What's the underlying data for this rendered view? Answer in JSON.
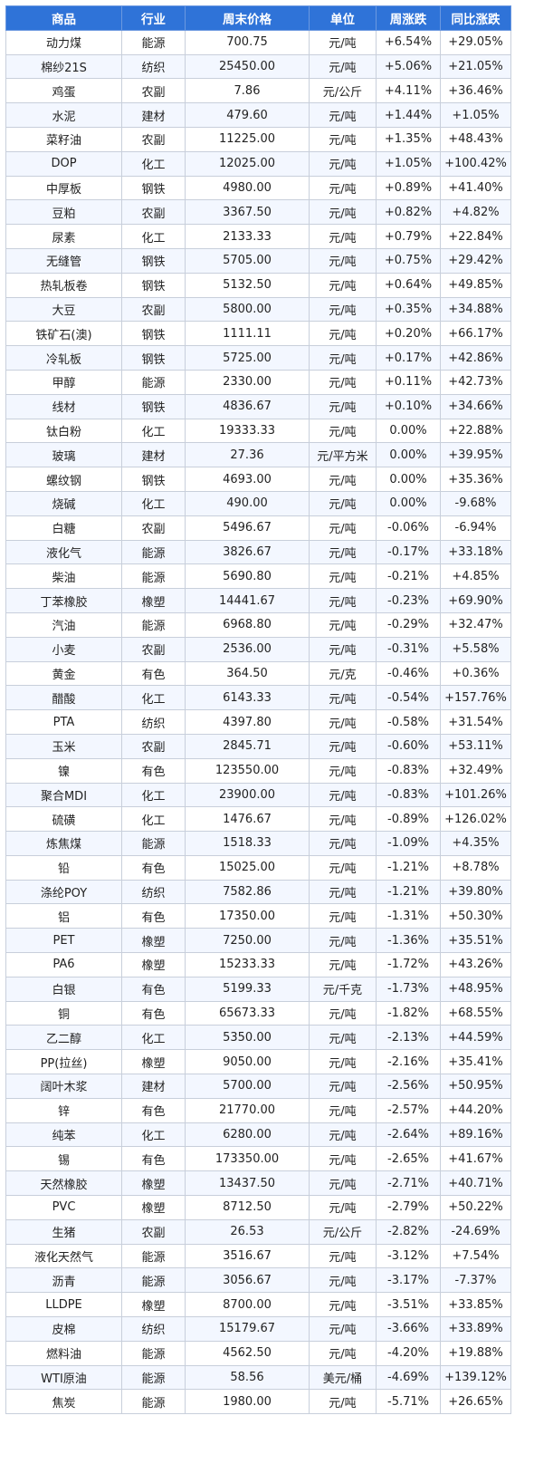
{
  "columns": [
    "商品",
    "行业",
    "周末价格",
    "单位",
    "周涨跌",
    "同比涨跌"
  ],
  "colors": {
    "header_bg": "#2f73d8",
    "rise": "#e60012",
    "fall": "#1b8a1b"
  },
  "rows": [
    [
      "动力煤",
      "能源",
      "700.75",
      "元/吨",
      "+6.54%",
      "+29.05%"
    ],
    [
      "棉纱21S",
      "纺织",
      "25450.00",
      "元/吨",
      "+5.06%",
      "+21.05%"
    ],
    [
      "鸡蛋",
      "农副",
      "7.86",
      "元/公斤",
      "+4.11%",
      "+36.46%"
    ],
    [
      "水泥",
      "建材",
      "479.60",
      "元/吨",
      "+1.44%",
      "+1.05%"
    ],
    [
      "菜籽油",
      "农副",
      "11225.00",
      "元/吨",
      "+1.35%",
      "+48.43%"
    ],
    [
      "DOP",
      "化工",
      "12025.00",
      "元/吨",
      "+1.05%",
      "+100.42%"
    ],
    [
      "中厚板",
      "钢铁",
      "4980.00",
      "元/吨",
      "+0.89%",
      "+41.40%"
    ],
    [
      "豆粕",
      "农副",
      "3367.50",
      "元/吨",
      "+0.82%",
      "+4.82%"
    ],
    [
      "尿素",
      "化工",
      "2133.33",
      "元/吨",
      "+0.79%",
      "+22.84%"
    ],
    [
      "无缝管",
      "钢铁",
      "5705.00",
      "元/吨",
      "+0.75%",
      "+29.42%"
    ],
    [
      "热轧板卷",
      "钢铁",
      "5132.50",
      "元/吨",
      "+0.64%",
      "+49.85%"
    ],
    [
      "大豆",
      "农副",
      "5800.00",
      "元/吨",
      "+0.35%",
      "+34.88%"
    ],
    [
      "铁矿石(澳)",
      "钢铁",
      "1111.11",
      "元/吨",
      "+0.20%",
      "+66.17%"
    ],
    [
      "冷轧板",
      "钢铁",
      "5725.00",
      "元/吨",
      "+0.17%",
      "+42.86%"
    ],
    [
      "甲醇",
      "能源",
      "2330.00",
      "元/吨",
      "+0.11%",
      "+42.73%"
    ],
    [
      "线材",
      "钢铁",
      "4836.67",
      "元/吨",
      "+0.10%",
      "+34.66%"
    ],
    [
      "钛白粉",
      "化工",
      "19333.33",
      "元/吨",
      "0.00%",
      "+22.88%"
    ],
    [
      "玻璃",
      "建材",
      "27.36",
      "元/平方米",
      "0.00%",
      "+39.95%"
    ],
    [
      "螺纹钢",
      "钢铁",
      "4693.00",
      "元/吨",
      "0.00%",
      "+35.36%"
    ],
    [
      "烧碱",
      "化工",
      "490.00",
      "元/吨",
      "0.00%",
      "-9.68%"
    ],
    [
      "白糖",
      "农副",
      "5496.67",
      "元/吨",
      "-0.06%",
      "-6.94%"
    ],
    [
      "液化气",
      "能源",
      "3826.67",
      "元/吨",
      "-0.17%",
      "+33.18%"
    ],
    [
      "柴油",
      "能源",
      "5690.80",
      "元/吨",
      "-0.21%",
      "+4.85%"
    ],
    [
      "丁苯橡胶",
      "橡塑",
      "14441.67",
      "元/吨",
      "-0.23%",
      "+69.90%"
    ],
    [
      "汽油",
      "能源",
      "6968.80",
      "元/吨",
      "-0.29%",
      "+32.47%"
    ],
    [
      "小麦",
      "农副",
      "2536.00",
      "元/吨",
      "-0.31%",
      "+5.58%"
    ],
    [
      "黄金",
      "有色",
      "364.50",
      "元/克",
      "-0.46%",
      "+0.36%"
    ],
    [
      "醋酸",
      "化工",
      "6143.33",
      "元/吨",
      "-0.54%",
      "+157.76%"
    ],
    [
      "PTA",
      "纺织",
      "4397.80",
      "元/吨",
      "-0.58%",
      "+31.54%"
    ],
    [
      "玉米",
      "农副",
      "2845.71",
      "元/吨",
      "-0.60%",
      "+53.11%"
    ],
    [
      "镍",
      "有色",
      "123550.00",
      "元/吨",
      "-0.83%",
      "+32.49%"
    ],
    [
      "聚合MDI",
      "化工",
      "23900.00",
      "元/吨",
      "-0.83%",
      "+101.26%"
    ],
    [
      "硫磺",
      "化工",
      "1476.67",
      "元/吨",
      "-0.89%",
      "+126.02%"
    ],
    [
      "炼焦煤",
      "能源",
      "1518.33",
      "元/吨",
      "-1.09%",
      "+4.35%"
    ],
    [
      "铅",
      "有色",
      "15025.00",
      "元/吨",
      "-1.21%",
      "+8.78%"
    ],
    [
      "涤纶POY",
      "纺织",
      "7582.86",
      "元/吨",
      "-1.21%",
      "+39.80%"
    ],
    [
      "铝",
      "有色",
      "17350.00",
      "元/吨",
      "-1.31%",
      "+50.30%"
    ],
    [
      "PET",
      "橡塑",
      "7250.00",
      "元/吨",
      "-1.36%",
      "+35.51%"
    ],
    [
      "PA6",
      "橡塑",
      "15233.33",
      "元/吨",
      "-1.72%",
      "+43.26%"
    ],
    [
      "白银",
      "有色",
      "5199.33",
      "元/千克",
      "-1.73%",
      "+48.95%"
    ],
    [
      "铜",
      "有色",
      "65673.33",
      "元/吨",
      "-1.82%",
      "+68.55%"
    ],
    [
      "乙二醇",
      "化工",
      "5350.00",
      "元/吨",
      "-2.13%",
      "+44.59%"
    ],
    [
      "PP(拉丝)",
      "橡塑",
      "9050.00",
      "元/吨",
      "-2.16%",
      "+35.41%"
    ],
    [
      "阔叶木浆",
      "建材",
      "5700.00",
      "元/吨",
      "-2.56%",
      "+50.95%"
    ],
    [
      "锌",
      "有色",
      "21770.00",
      "元/吨",
      "-2.57%",
      "+44.20%"
    ],
    [
      "纯苯",
      "化工",
      "6280.00",
      "元/吨",
      "-2.64%",
      "+89.16%"
    ],
    [
      "锡",
      "有色",
      "173350.00",
      "元/吨",
      "-2.65%",
      "+41.67%"
    ],
    [
      "天然橡胶",
      "橡塑",
      "13437.50",
      "元/吨",
      "-2.71%",
      "+40.71%"
    ],
    [
      "PVC",
      "橡塑",
      "8712.50",
      "元/吨",
      "-2.79%",
      "+50.22%"
    ],
    [
      "生猪",
      "农副",
      "26.53",
      "元/公斤",
      "-2.82%",
      "-24.69%"
    ],
    [
      "液化天然气",
      "能源",
      "3516.67",
      "元/吨",
      "-3.12%",
      "+7.54%"
    ],
    [
      "沥青",
      "能源",
      "3056.67",
      "元/吨",
      "-3.17%",
      "-7.37%"
    ],
    [
      "LLDPE",
      "橡塑",
      "8700.00",
      "元/吨",
      "-3.51%",
      "+33.85%"
    ],
    [
      "皮棉",
      "纺织",
      "15179.67",
      "元/吨",
      "-3.66%",
      "+33.89%"
    ],
    [
      "燃料油",
      "能源",
      "4562.50",
      "元/吨",
      "-4.20%",
      "+19.88%"
    ],
    [
      "WTI原油",
      "能源",
      "58.56",
      "美元/桶",
      "-4.69%",
      "+139.12%"
    ],
    [
      "焦炭",
      "能源",
      "1980.00",
      "元/吨",
      "-5.71%",
      "+26.65%"
    ]
  ]
}
